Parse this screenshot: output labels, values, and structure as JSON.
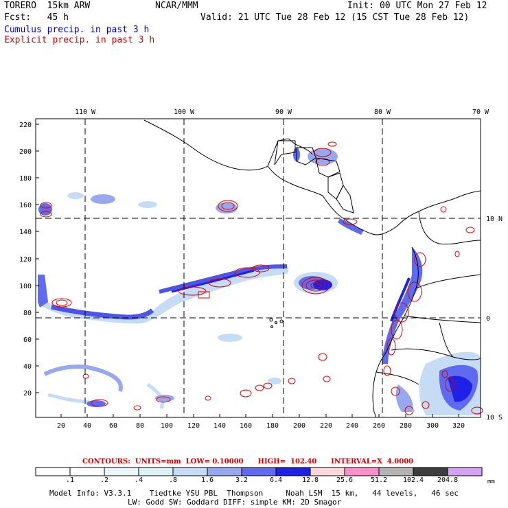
{
  "header": {
    "model": "TORERO  15km ARW",
    "org": "NCAR/MMM",
    "init": "Init: 00 UTC Mon 27 Feb 12",
    "fcst": "Fcst:   45 h",
    "valid": "Valid: 21 UTC Tue 28 Feb 12 (15 CST Tue 28 Feb 12)",
    "cumulus": "Cumulus precip. in past 3 h",
    "explicit": "Explicit precip. in past 3 h"
  },
  "map": {
    "lon_labels": [
      "110 W",
      "100 W",
      "90 W",
      "80 W",
      "70 W"
    ],
    "lat_labels": [
      "10 N",
      "0",
      "10 S"
    ],
    "y_ticks": [
      "220",
      "200",
      "180",
      "160",
      "140",
      "120",
      "100",
      "80",
      "60",
      "40",
      "20"
    ],
    "x_ticks": [
      "20",
      "40",
      "60",
      "80",
      "100",
      "120",
      "140",
      "160",
      "180",
      "200",
      "220",
      "240",
      "260",
      "280",
      "300",
      "320"
    ]
  },
  "contours_info": "CONTOURS:  UNITS=mm  LOW= 0.10000      HIGH=  102.40      INTERVAL=X  4.0000",
  "colorbar": {
    "labels": [
      ".1",
      ".2",
      ".4",
      ".8",
      "1.6",
      "3.2",
      "6.4",
      "12.8",
      "25.6",
      "51.2",
      "102.4",
      "204.8"
    ],
    "unit": "mm",
    "colors": [
      "#ffffff",
      "#ffffff",
      "#eaf6fa",
      "#dff2f8",
      "#c6dcf5",
      "#98a8f0",
      "#5f6aee",
      "#1f22e6",
      "#ffd8dc",
      "#ff8fc8",
      "#b3b3b3",
      "#3c3c3c",
      "#d3a2f5"
    ]
  },
  "footer": {
    "line1": "Model Info: V3.3.1    Tiedtke YSU PBL  Thompson     Noah LSM  15 km,   44 levels,   46 sec",
    "line2": "LW: Godd SW: Goddard DIFF: simple KM: 2D Smagor"
  }
}
